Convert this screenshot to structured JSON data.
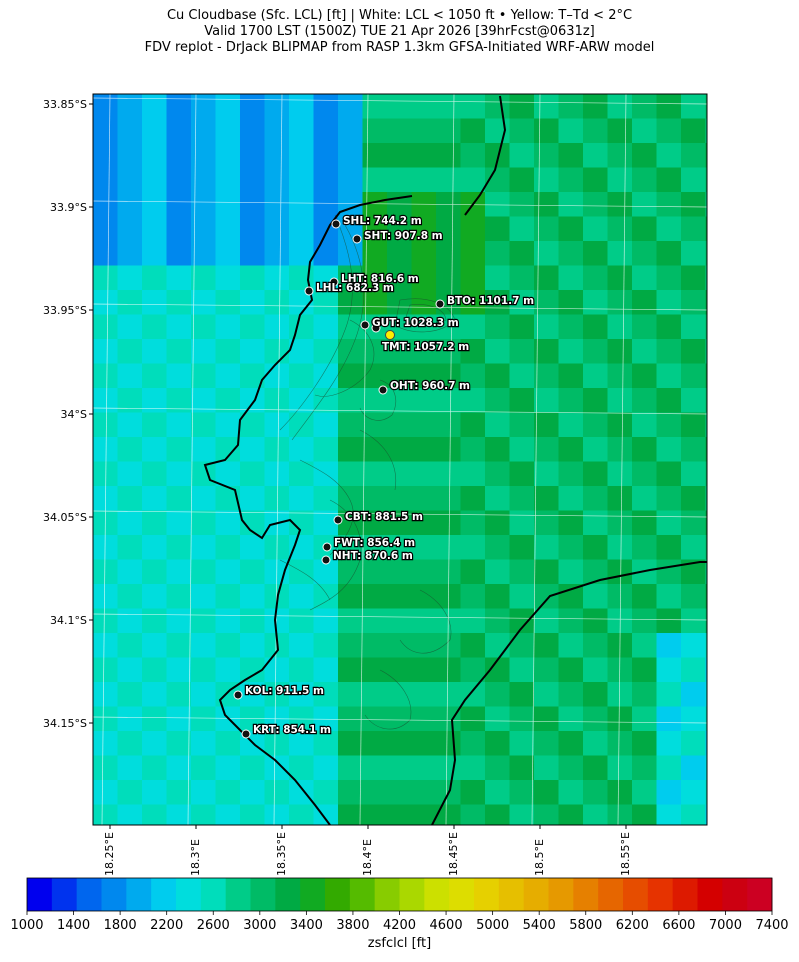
{
  "title": {
    "line1": "Cu Cloudbase (Sfc. LCL) [ft]  |  White: LCL < 1050 ft • Yellow: T–Td < 2°C",
    "line2": "Valid 1700 LST (1500Z) TUE 21 Apr 2026 [39hrFcst@0631z]",
    "line3": "FDV replot - DrJack BLIPMAP from RASP 1.3km GFSA-Initiated WRF-ARW model"
  },
  "map": {
    "lat_labels": [
      "33.85°S",
      "33.9°S",
      "33.95°S",
      "34°S",
      "34.05°S",
      "34.1°S",
      "34.15°S"
    ],
    "lon_labels": [
      "18.25°E",
      "18.3°E",
      "18.35°E",
      "18.4°E",
      "18.45°E",
      "18.5°E",
      "18.55°E"
    ],
    "stations": [
      {
        "id": "SHL",
        "label": "SHL: 744.2 m",
        "highlight": "none"
      },
      {
        "id": "SHT",
        "label": "SHT: 907.8 m",
        "highlight": "none"
      },
      {
        "id": "LHT",
        "label": "LHT: 816.6 m",
        "highlight": "none"
      },
      {
        "id": "LHL",
        "label": "LHL: 682.3 m",
        "highlight": "none"
      },
      {
        "id": "BTO",
        "label": "BTO: 1101.7 m",
        "highlight": "none"
      },
      {
        "id": "GUT",
        "label": "GUT: 1028.3 m",
        "highlight": "none"
      },
      {
        "id": "TMT",
        "label": "TMT: 1057.2 m",
        "highlight": "yellow"
      },
      {
        "id": "OHT",
        "label": "OHT: 960.7 m",
        "highlight": "none"
      },
      {
        "id": "CBT",
        "label": "CBT: 881.5 m",
        "highlight": "none"
      },
      {
        "id": "FWT",
        "label": "FWT: 856.4 m",
        "highlight": "none"
      },
      {
        "id": "NHT",
        "label": "NHT: 870.6 m",
        "highlight": "none"
      },
      {
        "id": "KOL",
        "label": "KOL: 911.5 m",
        "highlight": "none"
      },
      {
        "id": "KRT",
        "label": "KRT: 854.1 m",
        "highlight": "none"
      }
    ]
  },
  "colorbar": {
    "title": "zsfclcl [ft]",
    "tick_labels": [
      "1000",
      "1400",
      "1800",
      "2200",
      "2600",
      "3000",
      "3400",
      "3800",
      "4200",
      "4600",
      "5000",
      "5400",
      "5800",
      "6200",
      "6600",
      "7000",
      "7400"
    ],
    "colors": [
      "#0000ee",
      "#0033ee",
      "#0066ee",
      "#0088ee",
      "#00aaee",
      "#00ccee",
      "#00dddd",
      "#00ddbb",
      "#00cc88",
      "#00bb66",
      "#00aa44",
      "#11aa22",
      "#33aa00",
      "#55bb00",
      "#88cc00",
      "#aad800",
      "#cce000",
      "#dddd00",
      "#e6d000",
      "#e6bf00",
      "#e6ad00",
      "#e69900",
      "#e68000",
      "#e66600",
      "#e64d00",
      "#e63300",
      "#dd1a00",
      "#d40000",
      "#cc0011",
      "#cc0022"
    ]
  }
}
